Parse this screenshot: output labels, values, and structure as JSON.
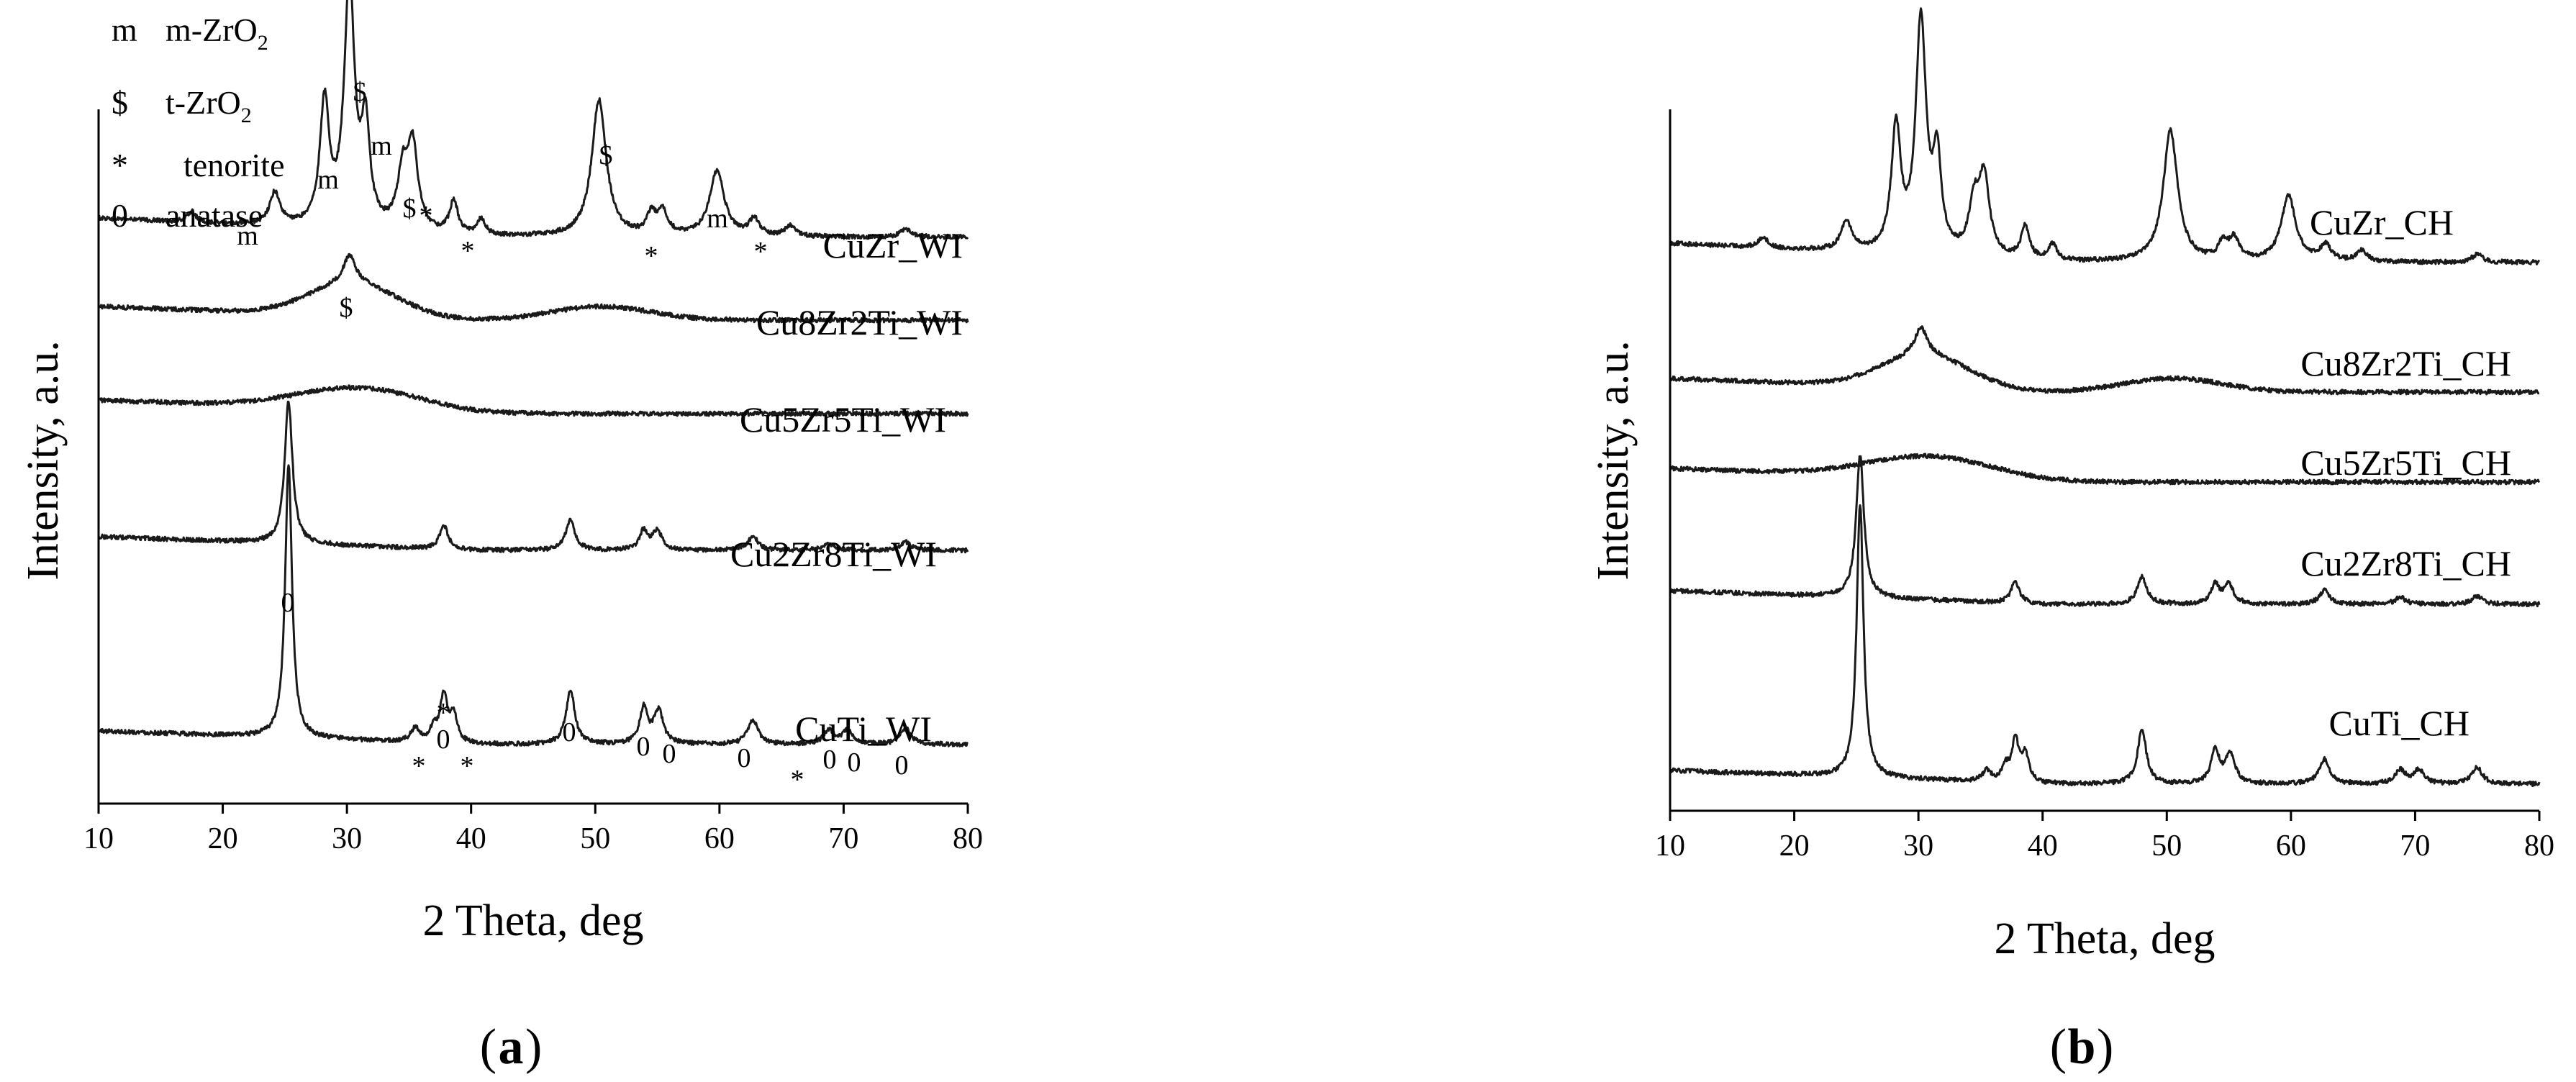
{
  "chart_data": [
    {
      "type": "line",
      "panel_label_open": "(",
      "panel_label_letter": "a",
      "panel_label_close": ")",
      "xlabel": "2 Theta, deg",
      "ylabel": "Intensity, a.u.",
      "xlim": [
        10,
        80
      ],
      "xticks": [
        10,
        20,
        30,
        40,
        50,
        60,
        70,
        80
      ],
      "legend": [
        {
          "symbol": "m",
          "label": "m-ZrO",
          "sub": "2"
        },
        {
          "symbol": "$",
          "label": "t-ZrO",
          "sub": "2"
        },
        {
          "symbol": "*",
          "label": "tenorite",
          "sub": ""
        },
        {
          "symbol": "0",
          "label": "anatase",
          "sub": ""
        }
      ],
      "series": [
        {
          "name": "CuZr_WI",
          "offset": 0.34,
          "amp": 0.5,
          "slope": 0.07,
          "noise": 0.008,
          "bumps": [],
          "peaks": [
            [
              17.5,
              0.04,
              0.4
            ],
            [
              24.2,
              0.12,
              0.5
            ],
            [
              28.2,
              0.45,
              0.45
            ],
            [
              30.2,
              0.9,
              0.5
            ],
            [
              31.5,
              0.35,
              0.4
            ],
            [
              34.5,
              0.2,
              0.5
            ],
            [
              35.3,
              0.3,
              0.5
            ],
            [
              38.6,
              0.12,
              0.4
            ],
            [
              40.8,
              0.06,
              0.4
            ],
            [
              50.3,
              0.5,
              0.7
            ],
            [
              54.5,
              0.07,
              0.4
            ],
            [
              55.4,
              0.09,
              0.5
            ],
            [
              59.8,
              0.24,
              0.7
            ],
            [
              62.8,
              0.06,
              0.5
            ],
            [
              65.7,
              0.04,
              0.5
            ],
            [
              75.0,
              0.03,
              0.5
            ]
          ]
        },
        {
          "name": "Cu8Zr2Ti_WI",
          "offset": 0.0,
          "amp": 0.5,
          "slope": 0.05,
          "noise": 0.008,
          "bumps": [
            [
              30.5,
              0.12,
              3.5
            ],
            [
              50.5,
              0.05,
              4
            ]
          ],
          "peaks": [
            [
              30.2,
              0.1,
              0.6
            ]
          ]
        },
        {
          "name": "Cu5Zr5Ti_WI",
          "offset": 0.0,
          "amp": 0.5,
          "slope": 0.05,
          "noise": 0.008,
          "bumps": [
            [
              31.0,
              0.08,
              5
            ]
          ],
          "peaks": []
        },
        {
          "name": "Cu2Zr8Ti_WI",
          "offset": 0.0,
          "amp": 0.5,
          "slope": 0.05,
          "noise": 0.008,
          "bumps": [],
          "peaks": [
            [
              25.3,
              0.52,
              0.38
            ],
            [
              37.8,
              0.09,
              0.4
            ],
            [
              48.0,
              0.11,
              0.45
            ],
            [
              53.9,
              0.07,
              0.4
            ],
            [
              55.0,
              0.07,
              0.45
            ],
            [
              62.7,
              0.05,
              0.5
            ],
            [
              68.8,
              0.025,
              0.5
            ],
            [
              75.0,
              0.03,
              0.5
            ]
          ]
        },
        {
          "name": "CuTi_WI",
          "offset": 0.0,
          "amp": 0.5,
          "slope": 0.05,
          "noise": 0.008,
          "bumps": [],
          "peaks": [
            [
              25.3,
              1.0,
              0.33
            ],
            [
              35.5,
              0.05,
              0.4
            ],
            [
              37.0,
              0.05,
              0.35
            ],
            [
              37.8,
              0.17,
              0.35
            ],
            [
              38.6,
              0.1,
              0.35
            ],
            [
              48.0,
              0.2,
              0.42
            ],
            [
              53.9,
              0.13,
              0.4
            ],
            [
              55.1,
              0.12,
              0.45
            ],
            [
              62.7,
              0.09,
              0.5
            ],
            [
              68.8,
              0.05,
              0.5
            ],
            [
              70.3,
              0.05,
              0.5
            ],
            [
              75.0,
              0.06,
              0.5
            ]
          ]
        }
      ],
      "annotations": [
        "m",
        "m",
        "m",
        "$",
        "$",
        "$",
        "$",
        "*",
        "*",
        "*",
        "*",
        "*",
        "*",
        "*",
        "*",
        "m",
        "0",
        "0",
        "0",
        "0",
        "0",
        "0",
        "0",
        "0",
        "0"
      ]
    },
    {
      "type": "line",
      "panel_label_open": "(",
      "panel_label_letter": "b",
      "panel_label_close": ")",
      "xlabel": "2 Theta, deg",
      "ylabel": "Intensity, a.u.",
      "xlim": [
        10,
        80
      ],
      "xticks": [
        10,
        20,
        30,
        40,
        50,
        60,
        70,
        80
      ],
      "series": [
        {
          "name": "CuZr_CH",
          "offset": 0.0,
          "amp": 0.5,
          "slope": 0.07,
          "noise": 0.008,
          "bumps": [],
          "peaks": [
            [
              17.5,
              0.04,
              0.4
            ],
            [
              24.2,
              0.11,
              0.5
            ],
            [
              28.2,
              0.45,
              0.45
            ],
            [
              30.2,
              0.85,
              0.5
            ],
            [
              31.5,
              0.33,
              0.4
            ],
            [
              34.5,
              0.18,
              0.5
            ],
            [
              35.3,
              0.28,
              0.5
            ],
            [
              38.6,
              0.12,
              0.4
            ],
            [
              40.8,
              0.06,
              0.4
            ],
            [
              50.3,
              0.48,
              0.7
            ],
            [
              54.5,
              0.06,
              0.4
            ],
            [
              55.4,
              0.08,
              0.5
            ],
            [
              59.8,
              0.24,
              0.7
            ],
            [
              62.8,
              0.06,
              0.5
            ],
            [
              65.7,
              0.04,
              0.5
            ],
            [
              75.0,
              0.03,
              0.5
            ]
          ]
        },
        {
          "name": "Cu8Zr2Ti_CH",
          "offset": 0.0,
          "amp": 0.5,
          "slope": 0.05,
          "noise": 0.008,
          "bumps": [
            [
              30.5,
              0.12,
              3.5
            ],
            [
              50.5,
              0.05,
              4
            ]
          ],
          "peaks": [
            [
              30.2,
              0.1,
              0.6
            ]
          ]
        },
        {
          "name": "Cu5Zr5Ti_CH",
          "offset": 0.0,
          "amp": 0.5,
          "slope": 0.05,
          "noise": 0.008,
          "bumps": [
            [
              31.0,
              0.08,
              5
            ]
          ],
          "peaks": []
        },
        {
          "name": "Cu2Zr8Ti_CH",
          "offset": 0.0,
          "amp": 0.5,
          "slope": 0.05,
          "noise": 0.008,
          "bumps": [],
          "peaks": [
            [
              25.3,
              0.52,
              0.38
            ],
            [
              37.8,
              0.08,
              0.4
            ],
            [
              48.0,
              0.1,
              0.45
            ],
            [
              53.9,
              0.07,
              0.4
            ],
            [
              55.0,
              0.07,
              0.45
            ],
            [
              62.7,
              0.05,
              0.5
            ],
            [
              68.8,
              0.025,
              0.5
            ],
            [
              75.0,
              0.03,
              0.5
            ]
          ]
        },
        {
          "name": "CuTi_CH",
          "offset": 0.0,
          "amp": 0.5,
          "slope": 0.05,
          "noise": 0.008,
          "bumps": [],
          "peaks": [
            [
              25.3,
              1.0,
              0.33
            ],
            [
              35.5,
              0.04,
              0.4
            ],
            [
              37.0,
              0.05,
              0.35
            ],
            [
              37.8,
              0.15,
              0.35
            ],
            [
              38.6,
              0.1,
              0.35
            ],
            [
              48.0,
              0.2,
              0.42
            ],
            [
              53.9,
              0.12,
              0.4
            ],
            [
              55.1,
              0.11,
              0.45
            ],
            [
              62.7,
              0.09,
              0.5
            ],
            [
              68.8,
              0.05,
              0.5
            ],
            [
              70.3,
              0.05,
              0.5
            ],
            [
              75.0,
              0.06,
              0.5
            ]
          ]
        }
      ]
    }
  ]
}
